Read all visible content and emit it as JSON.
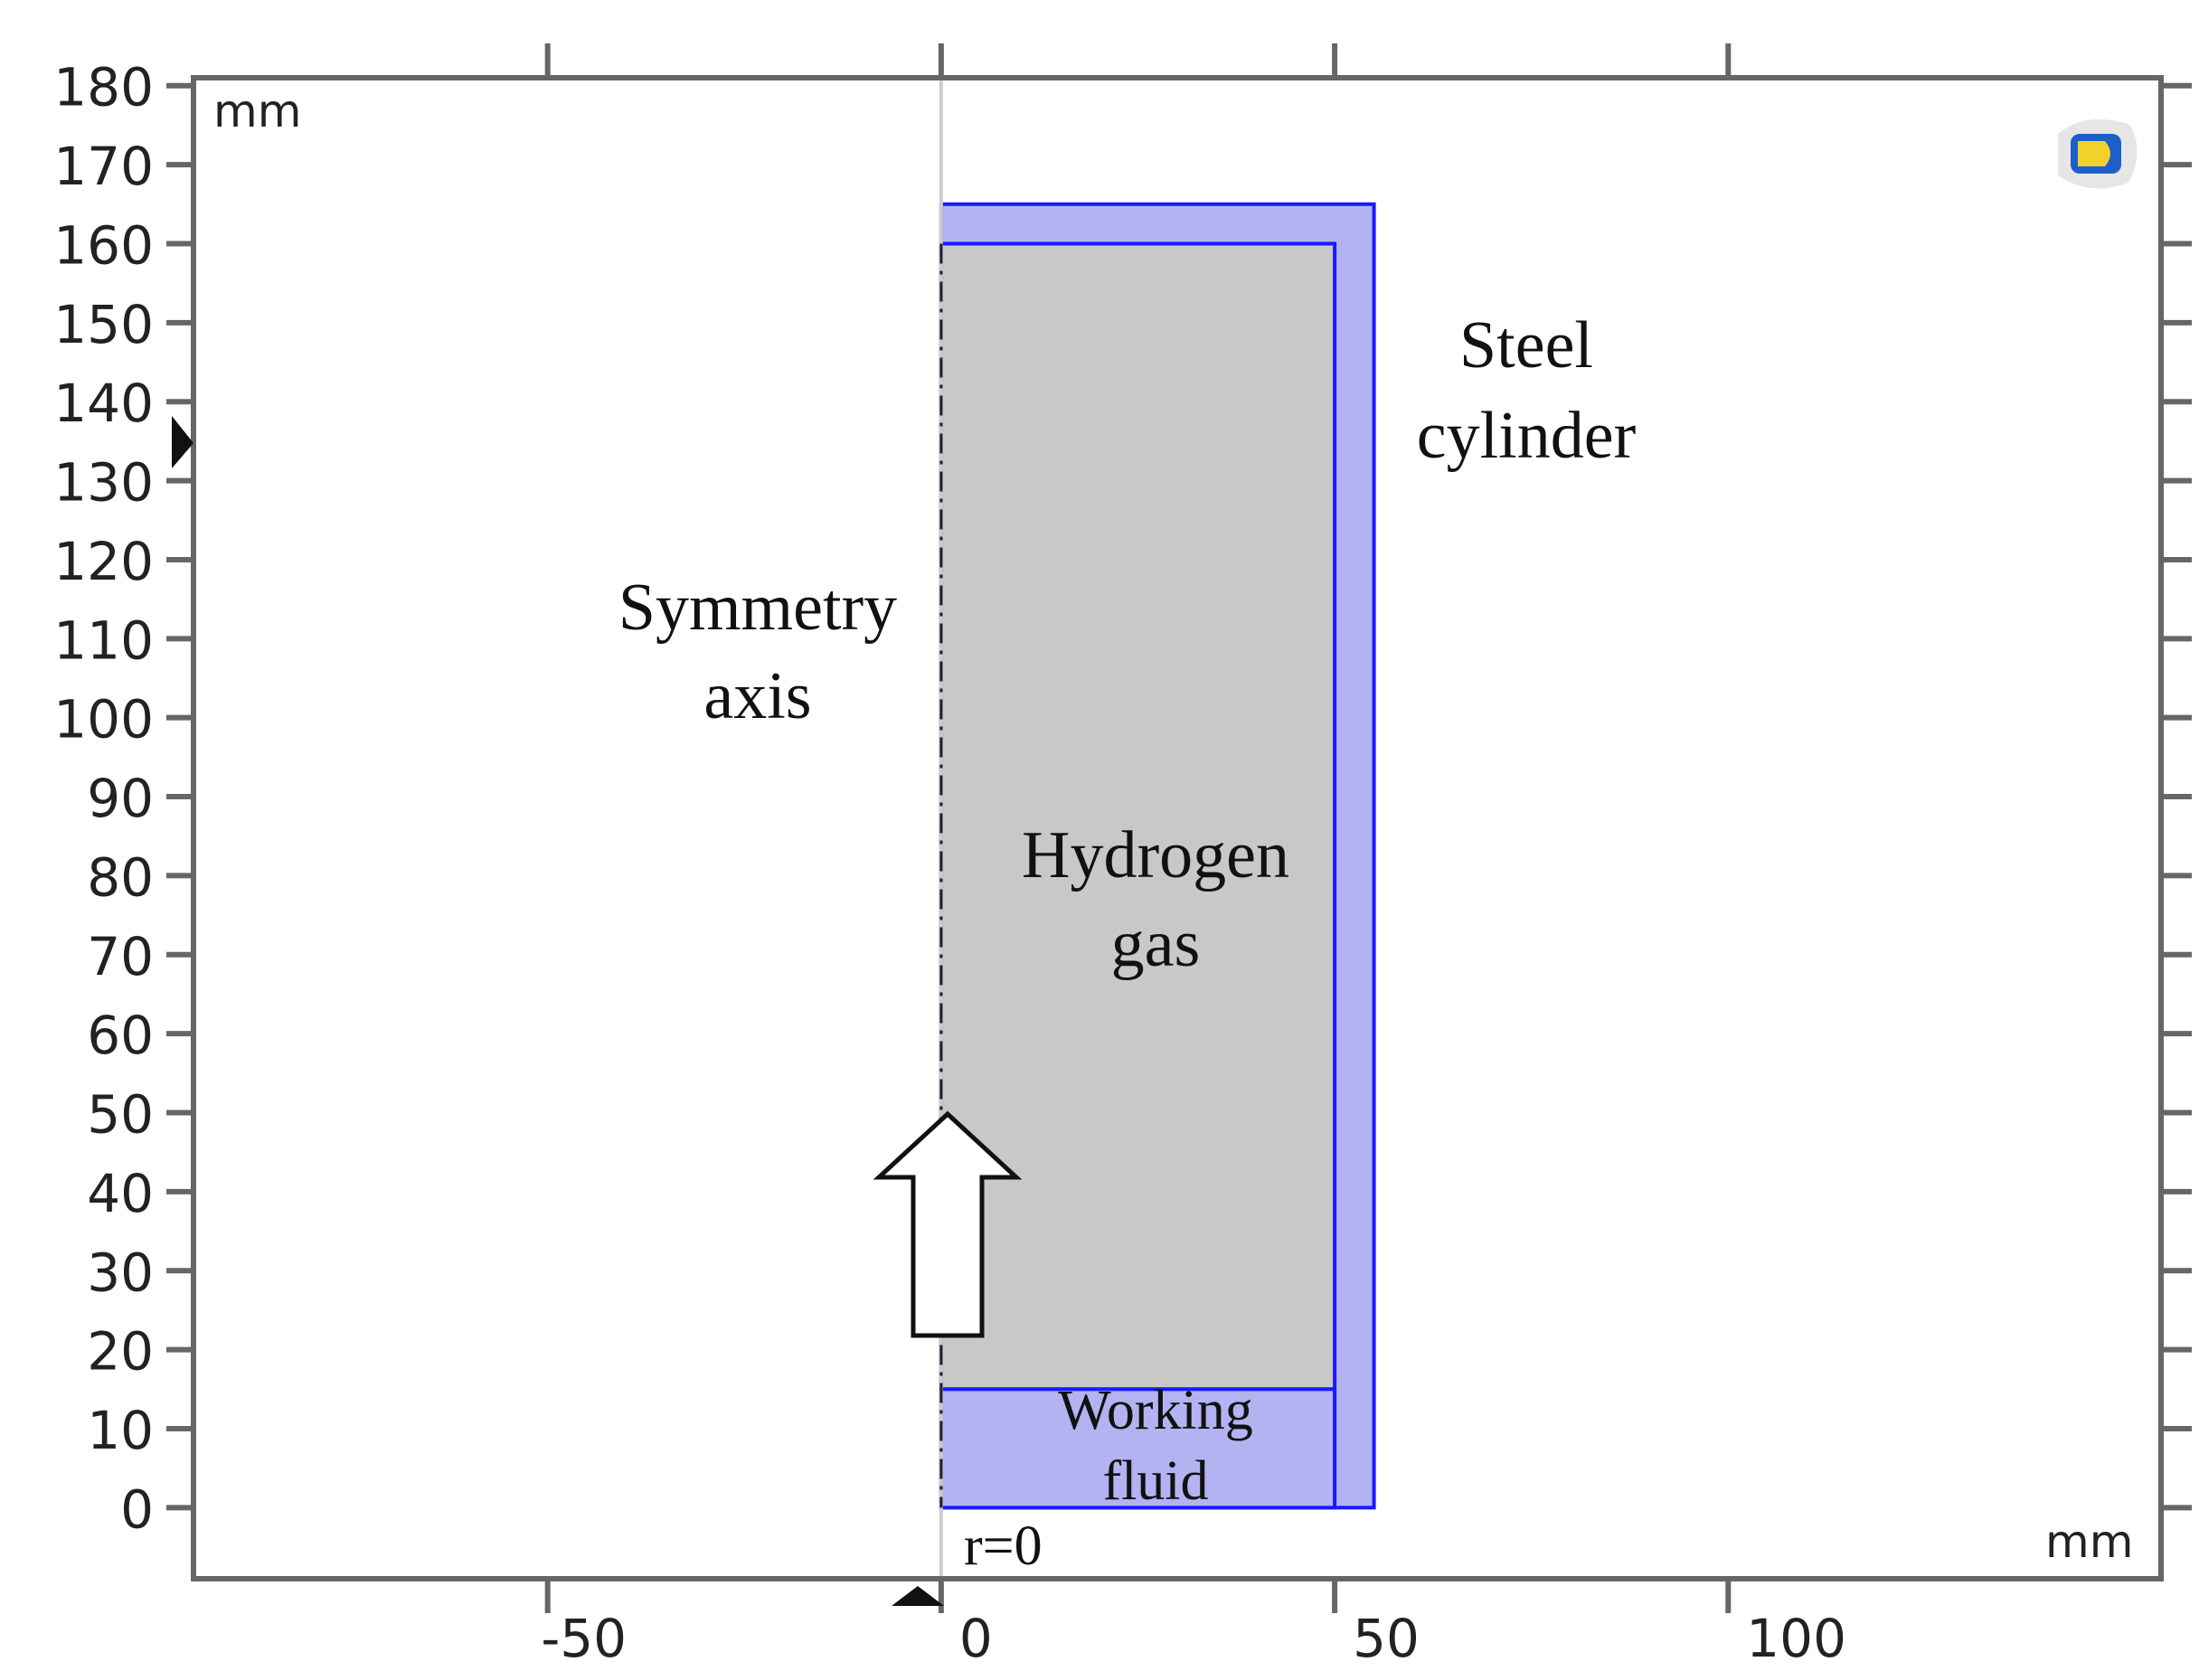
{
  "chart_data": {
    "type": "diagram",
    "x_unit": "mm",
    "y_unit": "mm",
    "x_ticks": [
      -50,
      0,
      50,
      100
    ],
    "y_ticks": [
      0,
      10,
      20,
      30,
      40,
      50,
      60,
      70,
      80,
      90,
      100,
      110,
      120,
      130,
      140,
      150,
      160,
      170,
      180
    ],
    "xlim": [
      -95,
      155
    ],
    "ylim": [
      -9,
      181
    ],
    "regions": [
      {
        "name": "steel-cylinder",
        "label": [
          "Steel",
          "cylinder"
        ],
        "r": [
          0,
          55
        ],
        "z": [
          0,
          165
        ]
      },
      {
        "name": "hydrogen-gas",
        "label": [
          "Hydrogen",
          "gas"
        ],
        "r": [
          0,
          50
        ],
        "z": [
          15,
          160
        ]
      },
      {
        "name": "working-fluid",
        "label": [
          "Working",
          "fluid"
        ],
        "r": [
          0,
          50
        ],
        "z": [
          0,
          15
        ]
      }
    ],
    "axis_label": [
      "Symmetry",
      "axis"
    ],
    "r0_label": "r=0"
  },
  "colors": {
    "steel": "#b3b3f2",
    "steel_border": "#1a1aff",
    "gas": "#c8c8c8",
    "fluid": "#b3b3f2",
    "frame": "#666666"
  }
}
